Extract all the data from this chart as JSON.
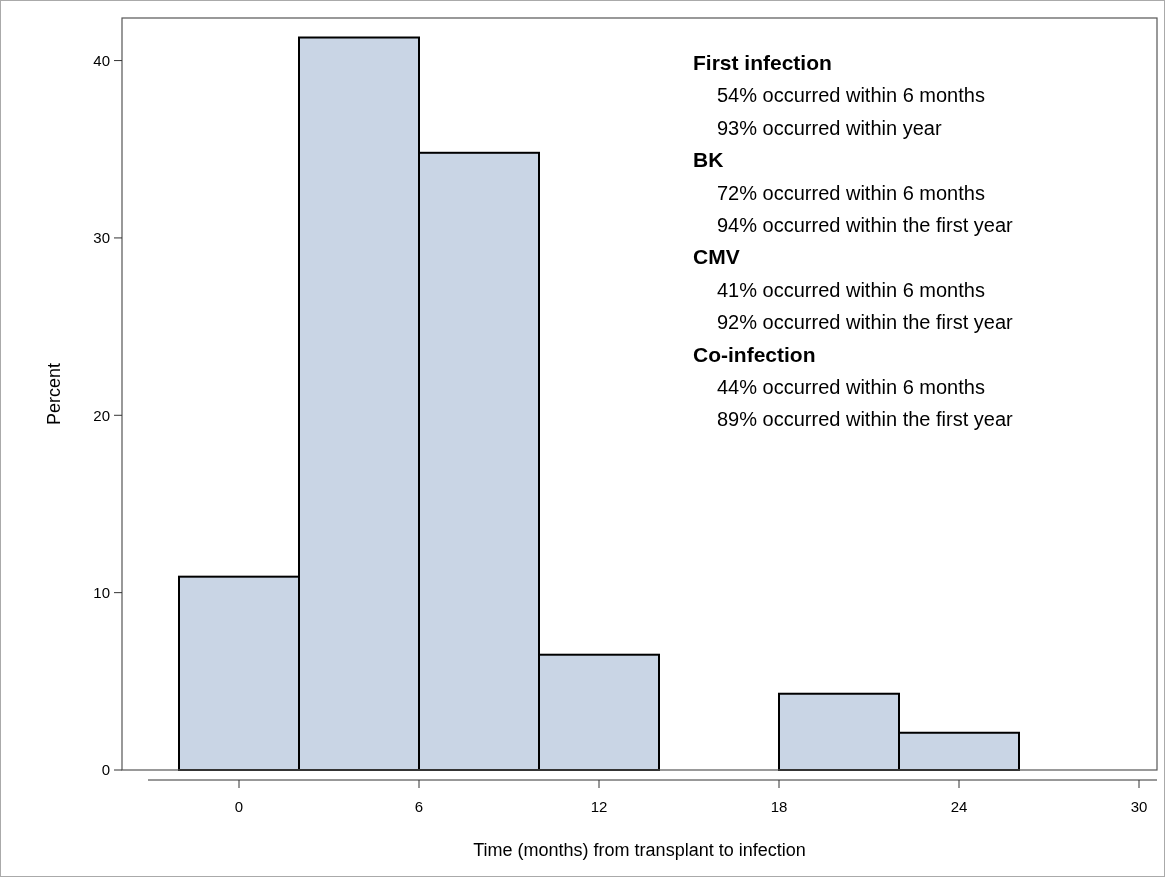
{
  "chart_data": {
    "type": "histogram",
    "xlabel": "Time (months) from transplant to infection",
    "ylabel": "Percent",
    "bins": [
      -2,
      2,
      6,
      10,
      14,
      18,
      22,
      26
    ],
    "values": [
      10.9,
      41.3,
      34.8,
      6.5,
      0,
      4.3,
      2.1
    ],
    "color": "#c9d5e5",
    "xlim": [
      -3.9,
      30.6
    ],
    "xticks": [
      0,
      6,
      12,
      18,
      24,
      30
    ],
    "ylim": [
      0,
      42.4
    ],
    "yticks": [
      0,
      10,
      20,
      30,
      40
    ],
    "grid": false,
    "annotations": [
      "First infection",
      "54% occurred within 6 months",
      "93% occurred within year",
      "BK",
      "72% occurred within 6 months",
      "94% occurred within the first year",
      "CMV",
      "41% occurred within 6 months",
      "92% occurred within the first year",
      "Co-infection",
      "44% occurred within 6 months",
      "89% occurred within the first year"
    ]
  }
}
